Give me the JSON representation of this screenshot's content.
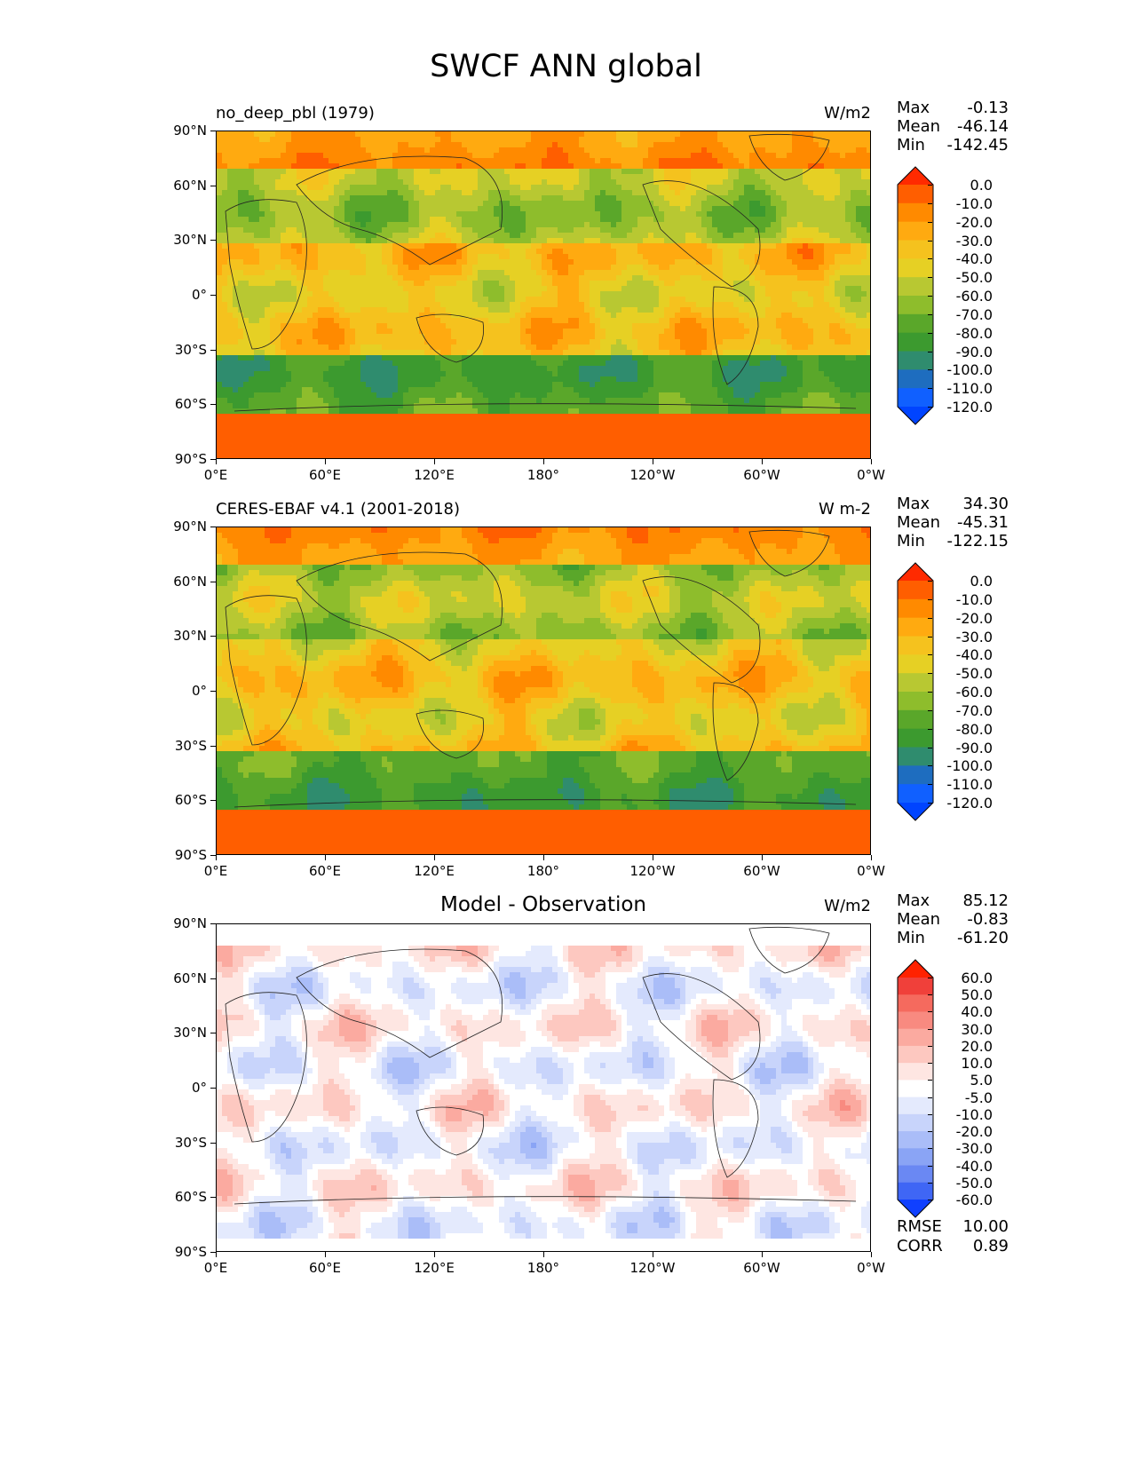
{
  "figure_title": "SWCF ANN global",
  "chart_data": [
    {
      "type": "heatmap",
      "title": "no_deep_pbl (1979)",
      "units": "W/m2",
      "xlabel": "",
      "ylabel": "",
      "x_ticks": [
        "0°E",
        "60°E",
        "120°E",
        "180°",
        "120°W",
        "60°W",
        "0°W"
      ],
      "y_ticks": [
        "90°N",
        "60°N",
        "30°N",
        "0°",
        "30°S",
        "60°S",
        "90°S"
      ],
      "stats": {
        "max_label": "Max",
        "max": "-0.13",
        "mean_label": "Mean",
        "mean": "-46.14",
        "min_label": "Min",
        "min": "-142.45"
      },
      "colorbar_levels": [
        "0.0",
        "-10.0",
        "-20.0",
        "-30.0",
        "-40.0",
        "-50.0",
        "-60.0",
        "-70.0",
        "-80.0",
        "-90.0",
        "-100.0",
        "-110.0",
        "-120.0"
      ],
      "colorbar_colors": [
        "#ff2a00",
        "#ff5e00",
        "#ff8a00",
        "#ffaa10",
        "#f5c21e",
        "#e6d024",
        "#b8c832",
        "#8ebd2c",
        "#5aa72a",
        "#3c9a2f",
        "#2f8c6e",
        "#1e6dbf",
        "#1060ff",
        "#0044ff"
      ]
    },
    {
      "type": "heatmap",
      "title": "CERES-EBAF v4.1 (2001-2018)",
      "units": "W m-2",
      "x_ticks": [
        "0°E",
        "60°E",
        "120°E",
        "180°",
        "120°W",
        "60°W",
        "0°W"
      ],
      "y_ticks": [
        "90°N",
        "60°N",
        "30°N",
        "0°",
        "30°S",
        "60°S",
        "90°S"
      ],
      "stats": {
        "max_label": "Max",
        "max": "34.30",
        "mean_label": "Mean",
        "mean": "-45.31",
        "min_label": "Min",
        "min": "-122.15"
      },
      "colorbar_levels": [
        "0.0",
        "-10.0",
        "-20.0",
        "-30.0",
        "-40.0",
        "-50.0",
        "-60.0",
        "-70.0",
        "-80.0",
        "-90.0",
        "-100.0",
        "-110.0",
        "-120.0"
      ],
      "colorbar_colors": [
        "#ff2a00",
        "#ff5e00",
        "#ff8a00",
        "#ffaa10",
        "#f5c21e",
        "#e6d024",
        "#b8c832",
        "#8ebd2c",
        "#5aa72a",
        "#3c9a2f",
        "#2f8c6e",
        "#1e6dbf",
        "#1060ff",
        "#0044ff"
      ]
    },
    {
      "type": "heatmap",
      "title": "Model - Observation",
      "units": "W/m2",
      "x_ticks": [
        "0°E",
        "60°E",
        "120°E",
        "180°",
        "120°W",
        "60°W",
        "0°W"
      ],
      "y_ticks": [
        "90°N",
        "60°N",
        "30°N",
        "0°",
        "30°S",
        "60°S",
        "90°S"
      ],
      "stats": {
        "max_label": "Max",
        "max": "85.12",
        "mean_label": "Mean",
        "mean": "-0.83",
        "min_label": "Min",
        "min": "-61.20"
      },
      "colorbar_levels": [
        "60.0",
        "50.0",
        "40.0",
        "30.0",
        "20.0",
        "10.0",
        "5.0",
        "-5.0",
        "-10.0",
        "-20.0",
        "-30.0",
        "-40.0",
        "-50.0",
        "-60.0"
      ],
      "colorbar_colors": [
        "#ff2200",
        "#f0403a",
        "#f56a5e",
        "#f88a80",
        "#fbaaa0",
        "#fdc8c0",
        "#fee6e2",
        "#ffffff",
        "#e4eafd",
        "#c8d4fb",
        "#aabdf8",
        "#8aa4f5",
        "#6a88f3",
        "#3f66f5",
        "#1040ff"
      ],
      "rmse_label": "RMSE",
      "rmse": "10.00",
      "corr_label": "CORR",
      "corr": "0.89"
    }
  ]
}
